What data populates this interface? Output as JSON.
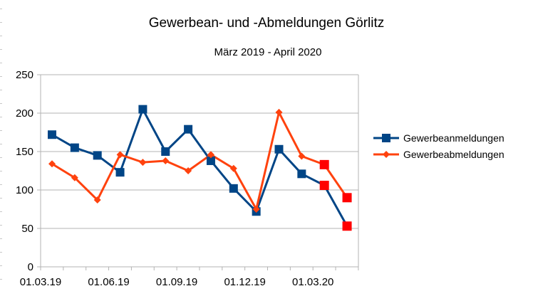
{
  "chart_data": {
    "type": "line",
    "title": "Gewerbean- und -Abmeldungen Görlitz",
    "subtitle": "März 2019 - April 2020",
    "xlabel": "",
    "ylabel": "",
    "x_tick_labels": [
      "01.03.19",
      "01.06.19",
      "01.09.19",
      "01.12.19",
      "01.03.20"
    ],
    "x": [
      "2019-03",
      "2019-04",
      "2019-05",
      "2019-06",
      "2019-07",
      "2019-08",
      "2019-09",
      "2019-10",
      "2019-11",
      "2019-12",
      "2020-01",
      "2020-02",
      "2020-03",
      "2020-04"
    ],
    "y_ticks": [
      0,
      50,
      100,
      150,
      200,
      250
    ],
    "ylim": [
      0,
      250
    ],
    "grid": "horizontal",
    "legend_position": "right",
    "series": [
      {
        "name": "Gewerbeanmeldungen",
        "color": "#004586",
        "marker": "square",
        "values": [
          172,
          155,
          145,
          123,
          205,
          150,
          179,
          138,
          102,
          72,
          153,
          121,
          106,
          53
        ],
        "highlighted_points": [
          12,
          13
        ]
      },
      {
        "name": "Gewerbeabmeldungen",
        "color": "#ff420e",
        "marker": "diamond",
        "values": [
          134,
          116,
          87,
          146,
          136,
          138,
          125,
          146,
          128,
          75,
          201,
          144,
          133,
          90
        ],
        "highlighted_points": [
          12,
          13
        ]
      }
    ],
    "highlight_color": "#ff0000"
  }
}
